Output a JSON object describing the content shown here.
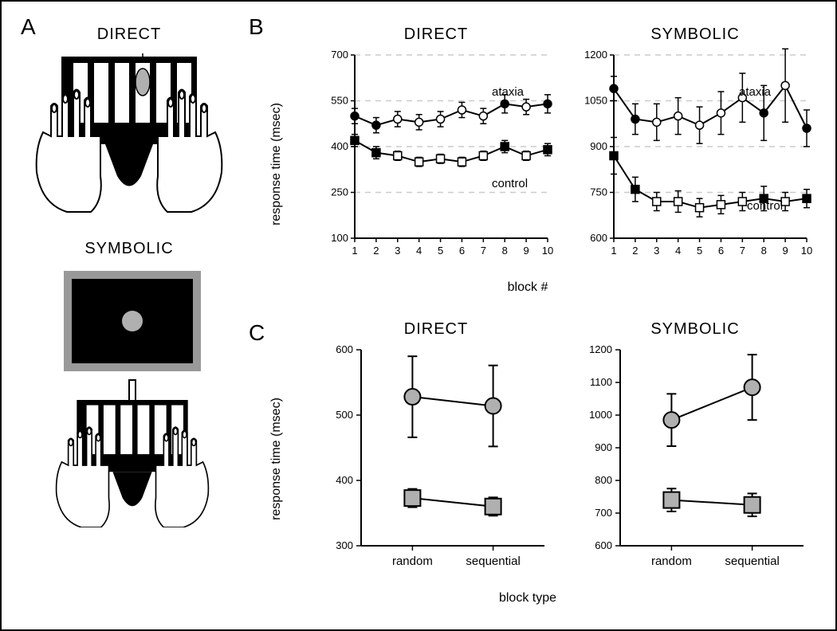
{
  "panelA": {
    "label": "A",
    "direct_title": "DIRECT",
    "symbolic_title": "SYMBOLIC"
  },
  "panelB": {
    "label": "B",
    "ylabel": "response time (msec)",
    "xlabel": "block #",
    "direct": {
      "title": "DIRECT",
      "ylim": [
        100,
        700
      ],
      "yticks": [
        100,
        250,
        400,
        550,
        700
      ],
      "xticks": [
        1,
        2,
        3,
        4,
        5,
        6,
        7,
        8,
        9,
        10
      ],
      "ataxia_label": "ataxia",
      "control_label": "control",
      "ataxia_filled_x": [
        1,
        2,
        8,
        10
      ],
      "ataxia_filled_y": [
        500,
        470,
        540,
        540
      ],
      "ataxia_filled_err": [
        25,
        25,
        30,
        30
      ],
      "ataxia_open_x": [
        3,
        4,
        5,
        6,
        7,
        9
      ],
      "ataxia_open_y": [
        490,
        480,
        490,
        520,
        500,
        530
      ],
      "ataxia_open_err": [
        25,
        25,
        25,
        25,
        25,
        25
      ],
      "control_filled_x": [
        1,
        2,
        8,
        10
      ],
      "control_filled_y": [
        420,
        380,
        400,
        390
      ],
      "control_filled_err": [
        20,
        20,
        20,
        20
      ],
      "control_open_x": [
        3,
        4,
        5,
        6,
        7,
        9
      ],
      "control_open_y": [
        370,
        350,
        360,
        350,
        370,
        370
      ],
      "control_open_err": [
        15,
        15,
        15,
        15,
        15,
        15
      ]
    },
    "symbolic": {
      "title": "SYMBOLIC",
      "ylim": [
        600,
        1200
      ],
      "yticks": [
        600,
        750,
        900,
        1050,
        1200
      ],
      "xticks": [
        1,
        2,
        3,
        4,
        5,
        6,
        7,
        8,
        9,
        10
      ],
      "ataxia_label": "ataxia",
      "control_label": "control",
      "ataxia_filled_x": [
        1,
        2,
        8,
        10
      ],
      "ataxia_filled_y": [
        1090,
        990,
        1010,
        960
      ],
      "ataxia_filled_err": [
        40,
        50,
        90,
        60
      ],
      "ataxia_open_x": [
        3,
        4,
        5,
        6,
        7,
        9
      ],
      "ataxia_open_y": [
        980,
        1000,
        970,
        1010,
        1060,
        1100
      ],
      "ataxia_open_err": [
        60,
        60,
        60,
        70,
        80,
        120
      ],
      "control_filled_x": [
        1,
        2,
        8,
        10
      ],
      "control_filled_y": [
        870,
        760,
        730,
        730
      ],
      "control_filled_err": [
        60,
        40,
        40,
        30
      ],
      "control_open_x": [
        3,
        4,
        5,
        6,
        7,
        9
      ],
      "control_open_y": [
        720,
        720,
        700,
        710,
        720,
        720
      ],
      "control_open_err": [
        30,
        35,
        30,
        30,
        30,
        30
      ]
    }
  },
  "panelC": {
    "label": "C",
    "ylabel": "response time (msec)",
    "xlabel": "block type",
    "xticks": [
      "random",
      "sequential"
    ],
    "direct": {
      "title": "DIRECT",
      "ylim": [
        300,
        600
      ],
      "yticks": [
        300,
        400,
        500,
        600
      ],
      "ataxia_y": [
        528,
        514
      ],
      "ataxia_err": [
        62,
        62
      ],
      "control_y": [
        373,
        360
      ],
      "control_err": [
        14,
        14
      ]
    },
    "symbolic": {
      "title": "SYMBOLIC",
      "ylim": [
        600,
        1200
      ],
      "yticks": [
        600,
        700,
        800,
        900,
        1000,
        1100,
        1200
      ],
      "ataxia_y": [
        985,
        1085
      ],
      "ataxia_err": [
        80,
        100
      ],
      "control_y": [
        740,
        725
      ],
      "control_err": [
        35,
        35
      ]
    }
  },
  "colors": {
    "black": "#000000",
    "white": "#ffffff",
    "grid": "#cccccc",
    "gray_fill": "#b0b0b0",
    "gray_screen": "#999999",
    "light_gray": "#d0d0d0"
  },
  "style": {
    "title_fontsize": 20,
    "label_fontsize": 16,
    "tick_fontsize": 13,
    "series_fontsize": 15,
    "panel_label_fontsize": 28,
    "line_width": 2,
    "marker_radius_small": 5,
    "marker_radius_large": 10,
    "errorbar_width": 1.5,
    "errorbar_cap": 5
  }
}
